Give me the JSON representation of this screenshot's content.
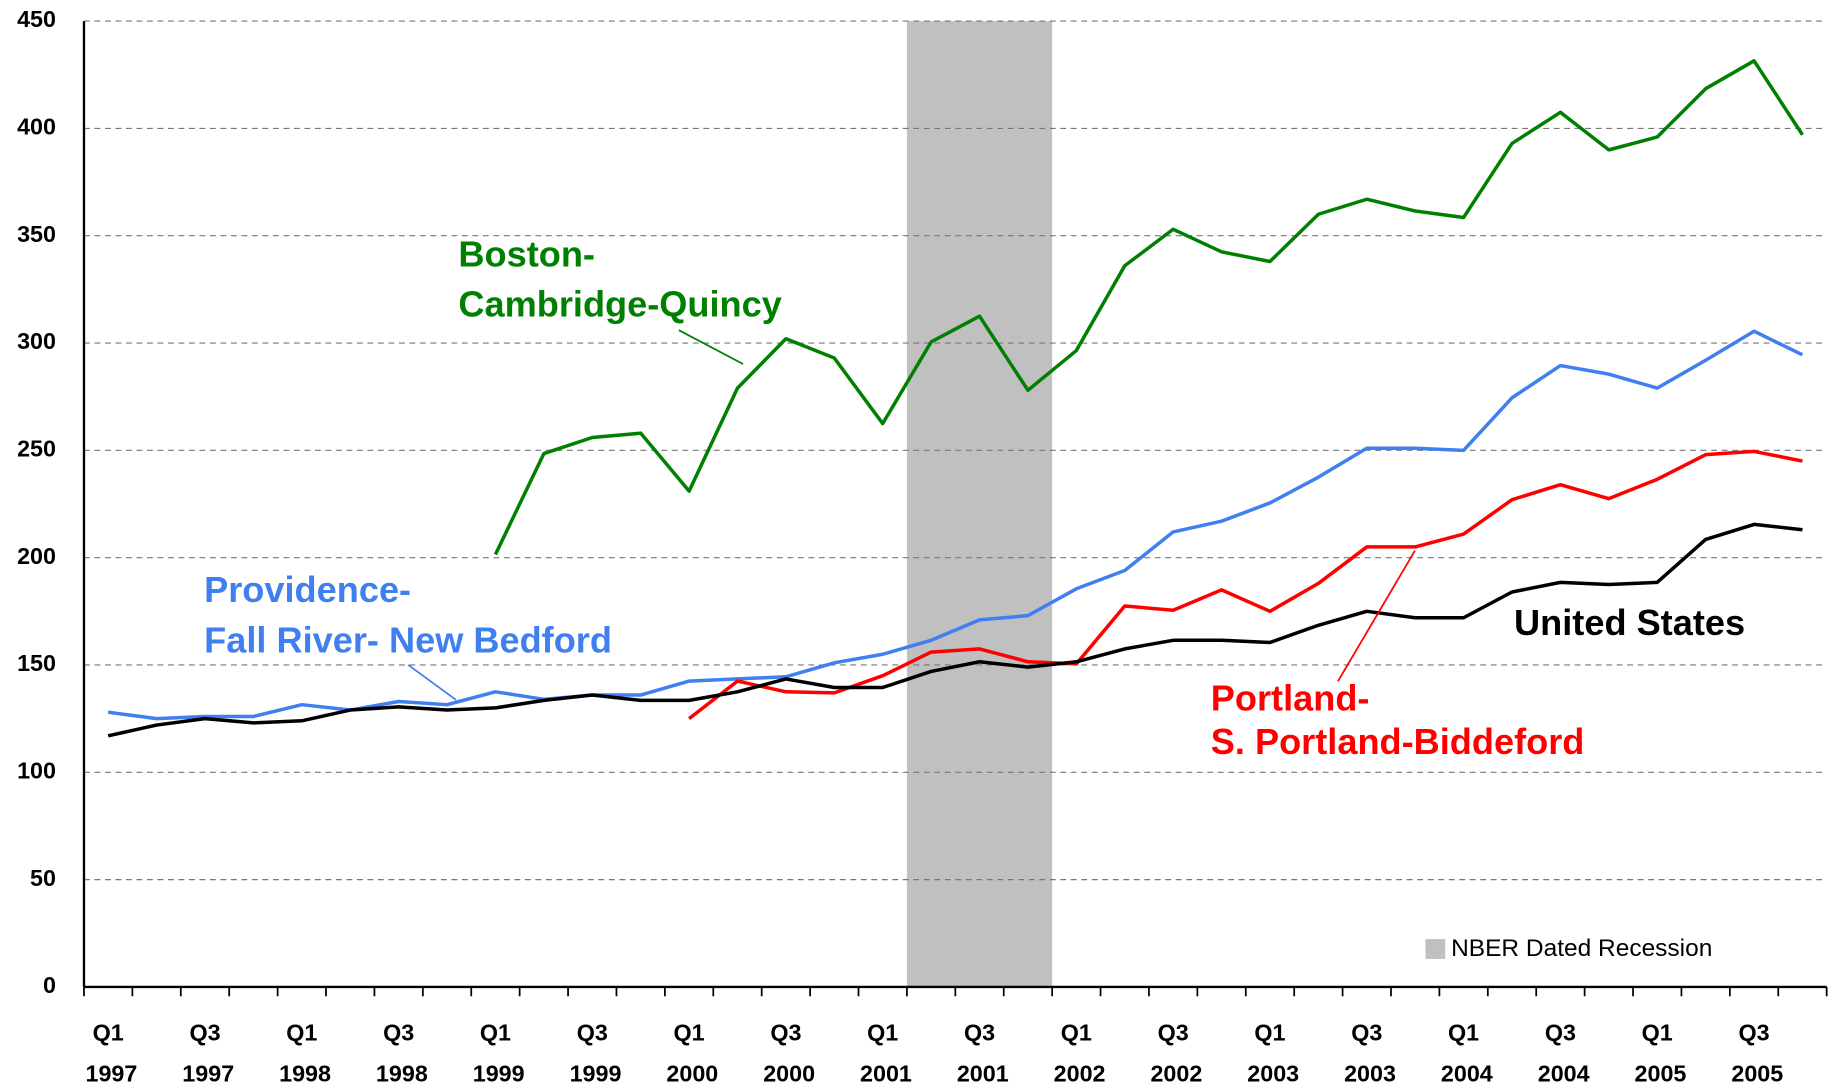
{
  "chart_data": {
    "type": "line",
    "categories": [
      "Q1 1997",
      null,
      "Q3 1997",
      null,
      "Q1 1998",
      null,
      "Q3 1998",
      null,
      "Q1 1999",
      null,
      "Q3 1999",
      null,
      "Q1 2000",
      null,
      "Q3 2000",
      null,
      "Q1 2001",
      null,
      "Q3 2001",
      null,
      "Q1 2002",
      null,
      "Q3 2002",
      null,
      "Q1 2003",
      null,
      "Q3 2003",
      null,
      "Q1 2004",
      null,
      "Q3 2004",
      null,
      "Q1 2005",
      null,
      "Q3 2005",
      null
    ],
    "series": [
      {
        "name": [
          "Boston-",
          "Cambridge-Quincy"
        ],
        "color": "#008000",
        "values": [
          null,
          null,
          null,
          null,
          null,
          null,
          null,
          null,
          201.5,
          248.5,
          256,
          258,
          231,
          279,
          302,
          293,
          262.5,
          300.5,
          312.5,
          278,
          296.5,
          336,
          353,
          342.5,
          338,
          360,
          367,
          361.5,
          358.5,
          393,
          407.5,
          390,
          396,
          418.5,
          431.5,
          397
        ]
      },
      {
        "name": [
          "Providence-",
          "Fall River- New Bedford"
        ],
        "color": "#3f7ff0",
        "values": [
          128,
          125,
          126,
          126,
          131.5,
          129,
          133,
          131.5,
          137.5,
          134,
          136,
          136,
          142.5,
          143.5,
          144.5,
          151,
          155,
          161.5,
          171,
          173,
          185.5,
          194,
          212,
          217,
          225.5,
          237.5,
          251,
          251,
          250,
          274.5,
          289.5,
          285.5,
          279,
          292,
          305.5,
          294.5
        ]
      },
      {
        "name": [
          "Portland-",
          "S. Portland-Biddeford"
        ],
        "color": "#ff0000",
        "values": [
          null,
          null,
          null,
          null,
          null,
          null,
          null,
          null,
          null,
          null,
          null,
          null,
          125,
          142.5,
          137.5,
          137,
          145,
          156,
          157.5,
          151.5,
          150.5,
          177.5,
          175.5,
          185,
          175,
          188,
          205,
          205,
          211,
          227,
          234,
          227.5,
          236.5,
          248,
          249.5,
          245
        ]
      },
      {
        "name": [
          "United States"
        ],
        "color": "#000000",
        "values": [
          117,
          122,
          125,
          123,
          124,
          129,
          130.5,
          129,
          130,
          133.5,
          136,
          133.5,
          133.5,
          137.5,
          143.5,
          139.5,
          139.5,
          147,
          151.5,
          149,
          151.5,
          157.5,
          161.5,
          161.5,
          160.5,
          168.5,
          175,
          172,
          172,
          184,
          188.5,
          187.5,
          188.5,
          208.5,
          215.5,
          213
        ]
      }
    ],
    "recession": {
      "name": "NBER Dated Recession",
      "color": "#c0c0c0",
      "start_index": 17,
      "end_index": 19
    },
    "ylim": [
      0,
      450
    ],
    "yticks": [
      0,
      50,
      100,
      150,
      200,
      250,
      300,
      350,
      400,
      450
    ],
    "grid": true
  }
}
